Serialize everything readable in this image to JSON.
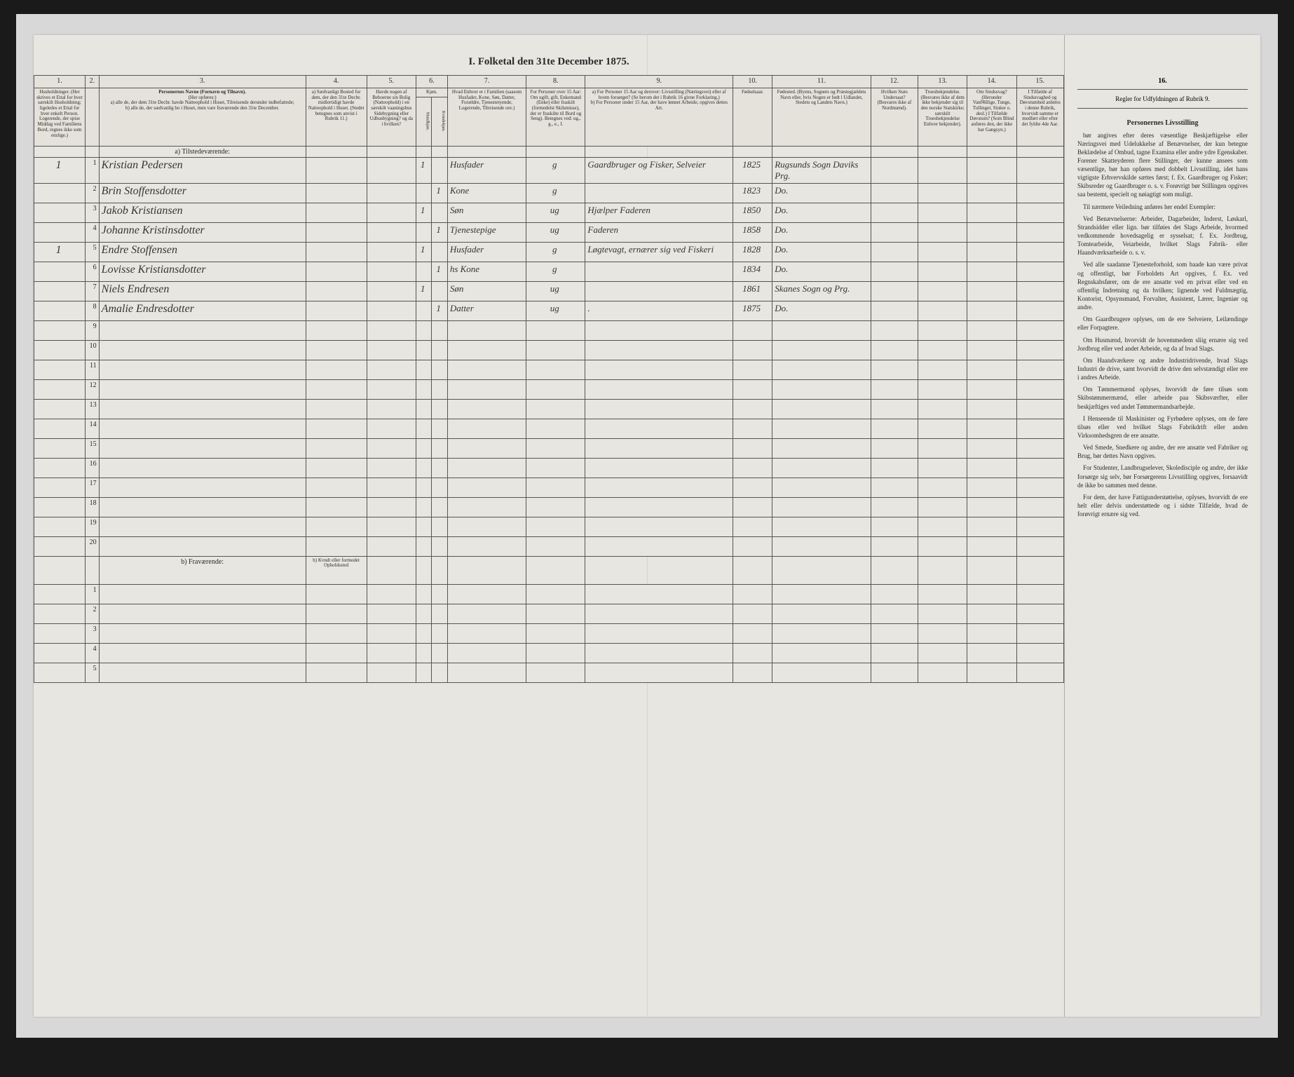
{
  "title": "I. Folketal den 31te December 1875.",
  "column_numbers": [
    "1.",
    "2.",
    "3.",
    "4.",
    "5.",
    "6.",
    "7.",
    "8.",
    "9.",
    "10.",
    "11.",
    "12.",
    "13.",
    "14.",
    "15.",
    "16."
  ],
  "headers": {
    "c1": "Husholdninger. (Her skrives et Ettal for hver særskilt Husholdning; ligeledes et Ettal for hver enkelt Person. Logerende, der spise Middag ved Familiens Bord, regnes ikke som enslige.)",
    "c3_title": "Personernes Navne (Fornavn og Tilnavn).",
    "c3_sub": "(Her opføres:)",
    "c3_a": "a) alle de, der dem 31te Decbr. havde Natteophold i Huset, Tilreisende derunder indbefattede;",
    "c3_b": "b) alle de, der sædvanlig bo i Huset, men vare fraværende den 31te December.",
    "c4": "a) Sædvanligt Bosted for dem, der den 31te Decbr. midlertidigt havde Natteophold i Huset. (Stedet betegnes som anvist i Rubrik 11.)",
    "c5": "Havde nogen af Beboerne sin Bolig (Natteophold) i en særskilt vaaningshus Sidebygning eller Udhusbygning? og da i hvilken?",
    "c6": "Kjøn.",
    "c6m": "Mandkjøn.",
    "c6k": "Kvindekjøn.",
    "c7": "Hvad Enhver er i Familien (saasom Husfader, Kone, Søn, Datter, Forældre, Tjenestetyende, Logerende, Tilreisende osv.)",
    "c8": "For Personer over 15 Aar: Om ugift, gift, Enkemand (Enke) eller fraskilt (formedelst Skilsmisse), der er fraskilte til Bord og Seng). Betegnes ved: ug., g., e., f.",
    "c9a": "a) For Personer 15 Aar og derover: Livsstilling (Næringsvei) eller af hvem forsørget? (Se herom det i Rubrik 16 givne Forklaring.)",
    "c9b": "b) For Personer under 15 Aar, der have lønnet Arbeide, opgives dettes Art.",
    "c10": "Fødselsaar.",
    "c11": "Fødested. (Byens, Sognets og Præstegjældets Navn eller, hvis Nogen er født i Udlandet, Stedets og Landets Navn.)",
    "c12": "Hvilken Stats Undersaat? (Besvares ikke af Nordmænd).",
    "c13": "Troesbekjendelse. (Besvares ikke af dem ikke bekjender sig til den norske Statskirke; særskilt Troesbekjendelse Enhver bekjender).",
    "c14": "Om Sindssvag? (Herunder Vanfवillige, Tunge, Tullinger, Sinker o. desl.) I Tilfælde Døvstum? (Som Blind anføres den, der ikke har Gangsyn.)",
    "c15": "I Tilfælde af Sindssvaghed og Døvstumhed anføres i denne Rubrik, hvorvidt samme er medført eller efter det fyldte 4de Aar.",
    "c16": "Regler for Udfyldningen af Rubrik 9."
  },
  "section_a": "a) Tilstedeværende:",
  "section_b": "b) Fraværende:",
  "section_b_col4": "b) Kvndt eller formodet Opholdssted",
  "rows": [
    {
      "n": "1",
      "hh": "1",
      "name": "Kristian Pedersen",
      "c5": "",
      "c6": "1",
      "role": "Husfader",
      "civ": "g",
      "occ": "Gaardbruger og Fisker, Selveier",
      "year": "1825",
      "place": "Rugsunds Sogn Daviks Prg."
    },
    {
      "n": "2",
      "hh": "",
      "name": "Brin Stoffensdotter",
      "c5": "",
      "c6": "1",
      "role": "Kone",
      "civ": "g",
      "occ": "",
      "year": "1823",
      "place": "Do."
    },
    {
      "n": "3",
      "hh": "",
      "name": "Jakob Kristiansen",
      "c5": "",
      "c6": "1",
      "role": "Søn",
      "civ": "ug",
      "occ": "Hjælper Faderen",
      "year": "1850",
      "place": "Do."
    },
    {
      "n": "4",
      "hh": "",
      "name": "Johanne Kristinsdotter",
      "c5": "",
      "c6": "1",
      "role": "Tjenestepige",
      "civ": "ug",
      "occ": "Faderen",
      "year": "1858",
      "place": "Do."
    },
    {
      "n": "5",
      "hh": "1",
      "name": "Endre Stoffensen",
      "c5": "",
      "c6": "1",
      "role": "Husfader",
      "civ": "g",
      "occ": "Løgtevagt, ernærer sig ved Fiskeri",
      "year": "1828",
      "place": "Do."
    },
    {
      "n": "6",
      "hh": "",
      "name": "Lovisse Kristiansdotter",
      "c5": "",
      "c6": "1",
      "role": "hs Kone",
      "civ": "g",
      "occ": "",
      "year": "1834",
      "place": "Do."
    },
    {
      "n": "7",
      "hh": "",
      "name": "Niels Endresen",
      "c5": "",
      "c6": "1",
      "role": "Søn",
      "civ": "ug",
      "occ": "",
      "year": "1861",
      "place": "Skanes Sogn og Prg."
    },
    {
      "n": "8",
      "hh": "",
      "name": "Amalie Endresdotter",
      "c5": "",
      "c6": "1",
      "role": "Datter",
      "civ": "ug",
      "occ": ".",
      "year": "1875",
      "place": "Do."
    }
  ],
  "empty_rows_a": [
    "9",
    "10",
    "11",
    "12",
    "13",
    "14",
    "15",
    "16",
    "17",
    "18",
    "19",
    "20"
  ],
  "empty_rows_b": [
    "1",
    "2",
    "3",
    "4",
    "5"
  ],
  "instructions": {
    "heading": "Personernes Livsstilling",
    "sub": "bør angives efter deres væsentlige Beskjæftigelse eller Næringsvei med Udelukkelse af Benævnelser, der kun betegne Beklædelse af Ombud, tagne Examina eller andre ydre Egenskaber. Forener Skatteyderen flere Stillinger, der kunne ansees som væsentlige, bør han opføres med dobbelt Livsstilling, idet hans vigtigste Erhvervskilde sættes først; f. Ex. Gaardbruger og Fisker; Skibsreder og Gaardbruger o. s. v. Forøvrigt bør Stillingen opgives saa bestemt, specielt og nøiagtigt som muligt.",
    "p1": "Til nærmere Veiledning anføres her endel Exempler:",
    "p2": "Ved Benævnelserne: Arbeider, Dagarbeider, Inderst, Løskarl, Strandsidder eller lign. bør tilføies det Slags Arbeide, hvormed vedkommende hovedsagelig er sysselsat; f. Ex. Jordbrug, Tomtearbeide, Veiarbeide, hvilket Slags Fabrik- eller Haandværksarbeide o. s. v.",
    "p3": "Ved alle saadanne Tjenesteforhold, som baade kan være privat og offentligt, bør Forholdets Art opgives, f. Ex. ved Regnskabsfører, om de ere ansatte ved en privat eller ved en offentlig Indretning og da hvilken; lignende ved Fuldmægtig, Kontorist, Opsynsmand, Forvalter, Assistent, Lærer, Ingeniør og andre.",
    "p4": "Om Gaardbrugere oplyses, om de ere Selveiere, Leilændinge eller Forpagtere.",
    "p5": "Om Husmænd, hvorvidt de hovemmedem sliig ernære sig ved Jordbrug eller ved andet Arbeide, og da af hvad Slags.",
    "p6": "Om Haandværkere og andre Industridrivende, hvad Slags Industri de drive, samt hvorvidt de drive den selvstændigt eller ere i andres Arbeide.",
    "p7": "Om Tømmermænd oplyses, hvorvidt de føre tilsøs som Skibstømmermænd, eller arbeide paa Skibsværfter, eller beskjæftiges ved andet Tømmermandsarbejde.",
    "p8": "I Henseende til Maskinister og Fyrbødere oplyses, om de føre tilsøs eller ved hvilket Slags Fabrikdrift eller anden Virksomhedsgren de ere ansatte.",
    "p9": "Ved Smede, Snedkere og andre, der ere ansatte ved Fabriker og Brug, bør dettes Navn opgives.",
    "p10": "For Studenter, Landbrugselever, Skoledisciple og andre, der ikke forsørge sig selv, bør Forsørgerens Livsstilling opgives, forsaavidt de ikke bo sammen med denne.",
    "p11": "For dem, der have Fattigunderstøttelse, oplyses, hvorvidt de ere helt eller delvis understøttede og i sidste Tilfælde, hvad de forøvrigt ernære sig ved."
  }
}
